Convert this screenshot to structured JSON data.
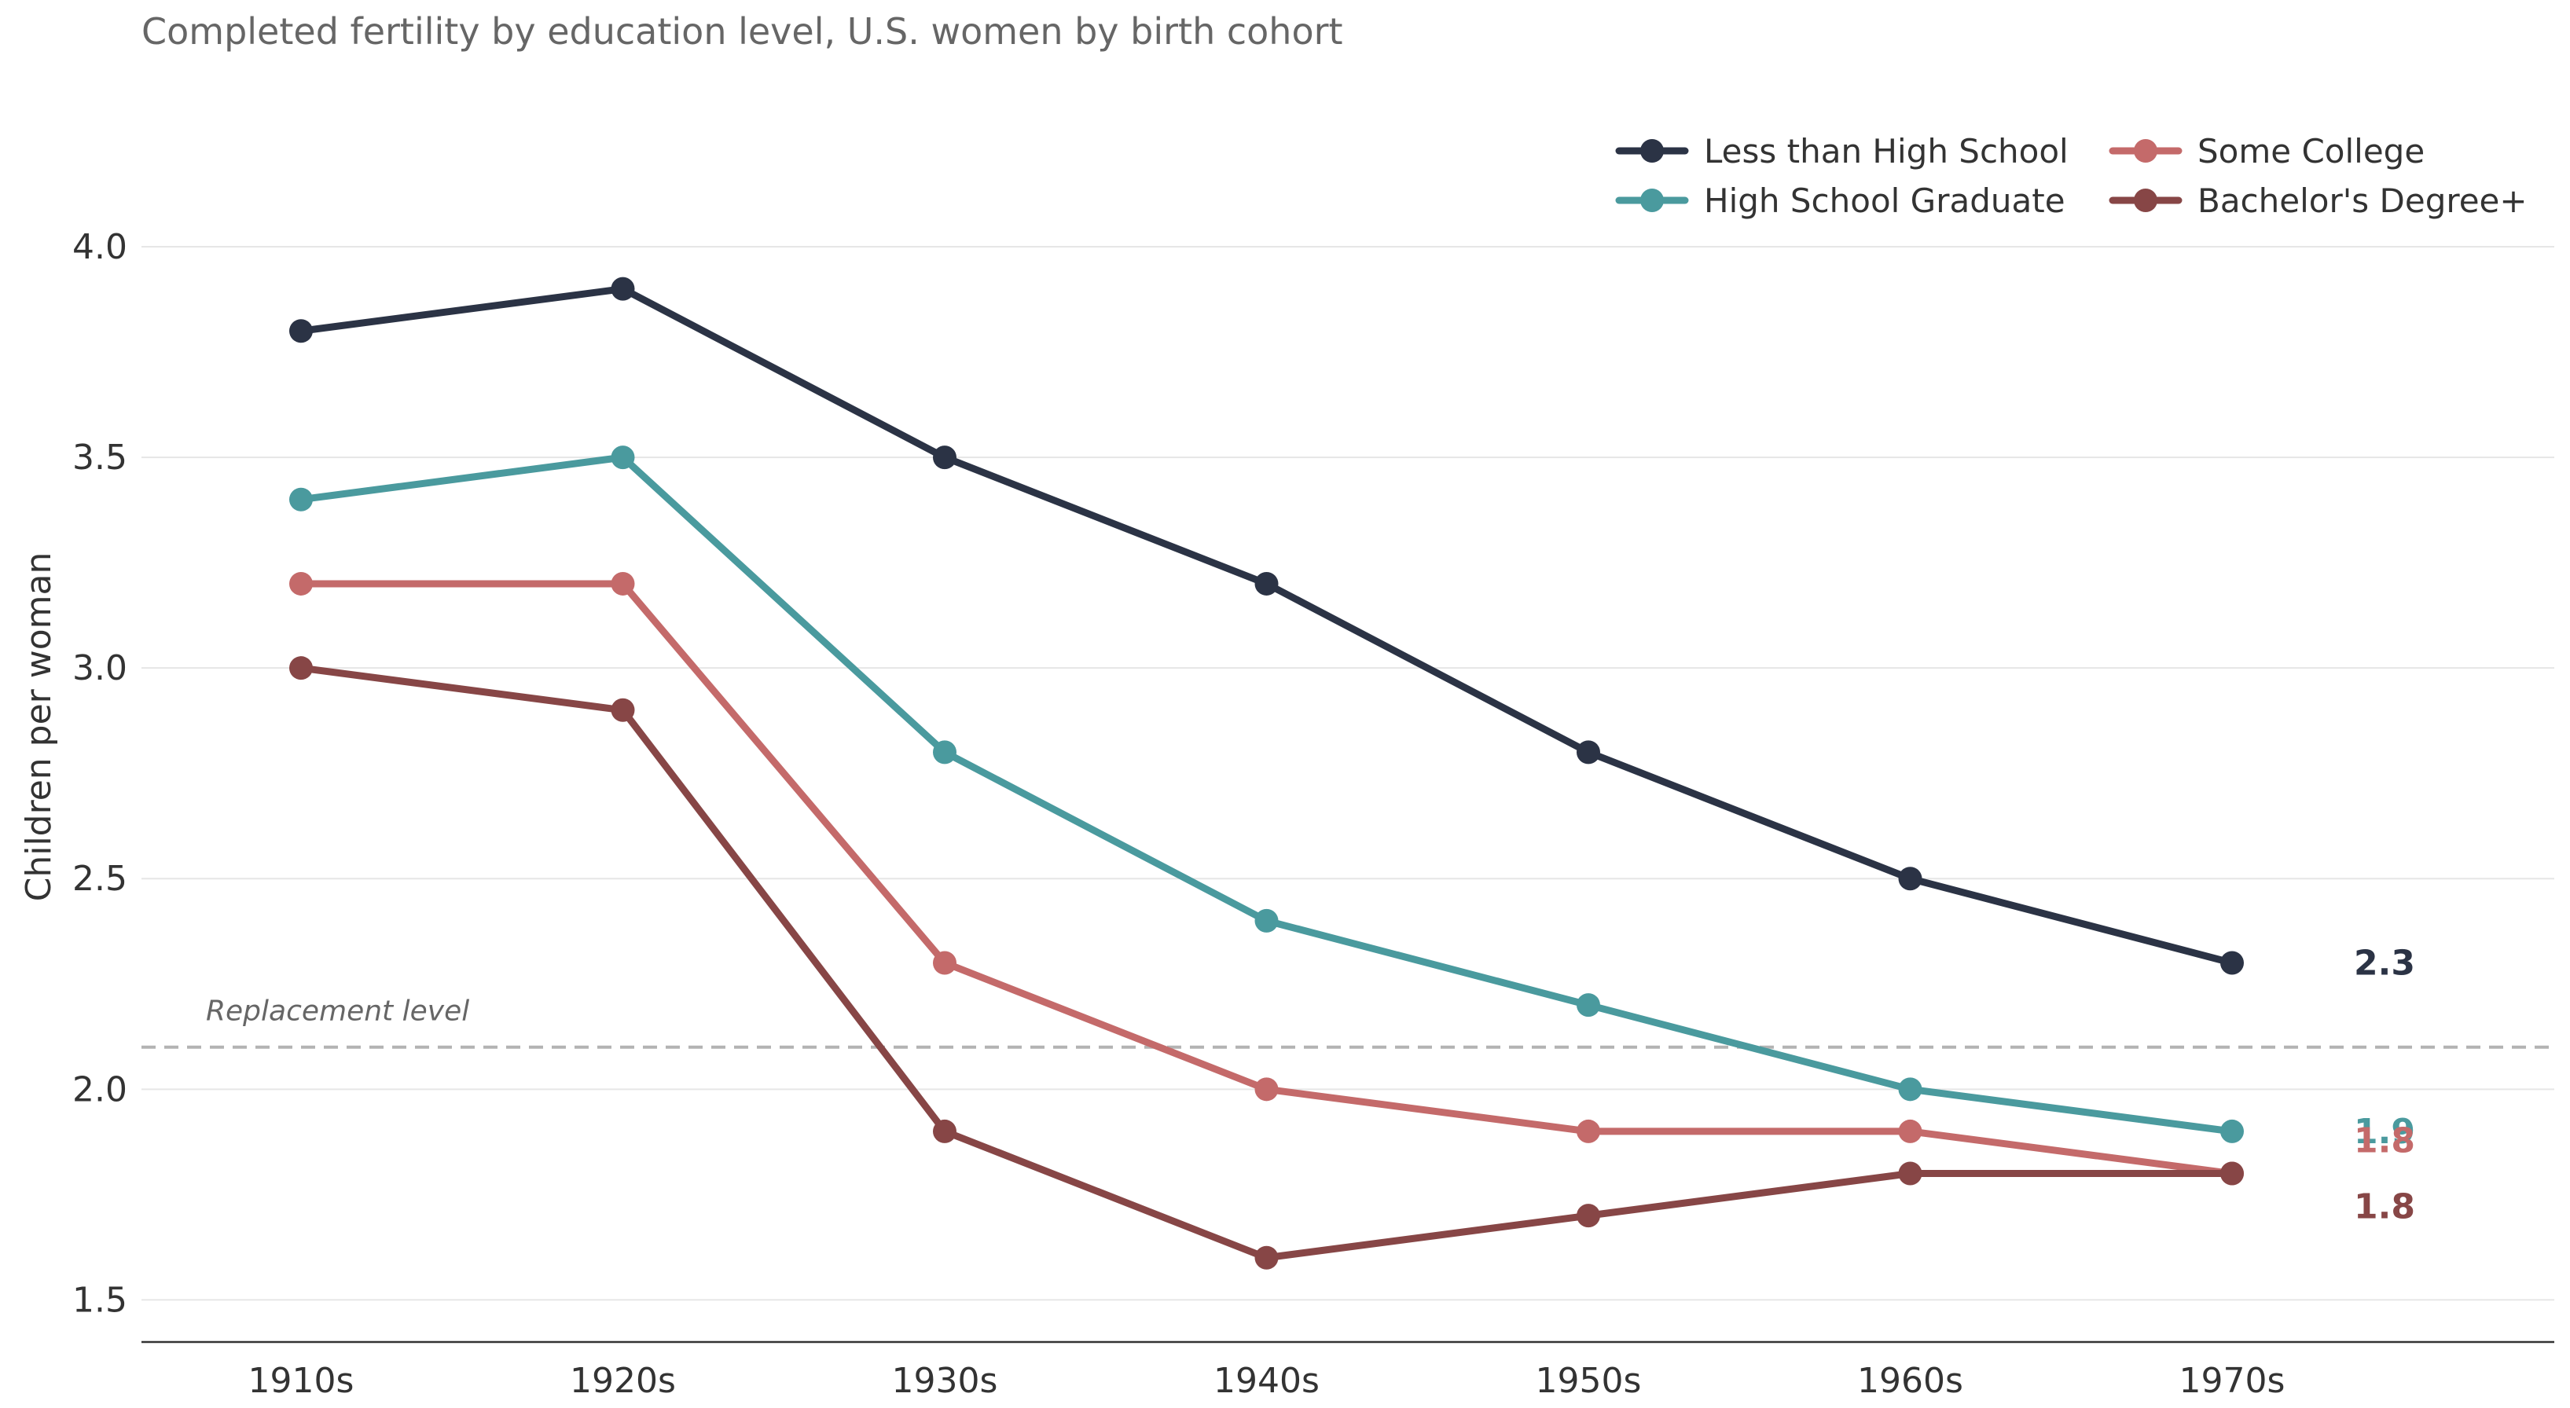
{
  "chart_data": {
    "type": "line",
    "title": "Completed fertility by education level, U.S. women by birth cohort",
    "xlabel": "",
    "ylabel": "Children per woman",
    "categories": [
      "1910s",
      "1920s",
      "1930s",
      "1940s",
      "1950s",
      "1960s",
      "1970s"
    ],
    "ylim": [
      1.4,
      4.25
    ],
    "yticks": [
      1.5,
      2.0,
      2.5,
      3.0,
      3.5,
      4.0
    ],
    "ytick_labels": [
      "1.5",
      "2.0",
      "2.5",
      "3.0",
      "3.5",
      "4.0"
    ],
    "grid": "horizontal",
    "legend_position": "top-right",
    "series": [
      {
        "name": "Less than High School",
        "color": "#2b3345",
        "values": [
          3.8,
          3.9,
          3.5,
          3.2,
          2.8,
          2.5,
          2.3
        ],
        "end_label": "2.3"
      },
      {
        "name": "High School Graduate",
        "color": "#4a9a9e",
        "values": [
          3.4,
          3.5,
          2.8,
          2.4,
          2.2,
          2.0,
          1.9
        ],
        "end_label": "1.9"
      },
      {
        "name": "Some College",
        "color": "#c46a6a",
        "values": [
          3.2,
          3.2,
          2.3,
          2.0,
          1.9,
          1.9,
          1.8
        ],
        "end_label": "1.8"
      },
      {
        "name": "Bachelor's Degree+",
        "color": "#874646",
        "values": [
          3.0,
          2.9,
          1.9,
          1.6,
          1.7,
          1.8,
          1.8
        ],
        "end_label": "1.8"
      }
    ],
    "reference_line": {
      "value": 2.1,
      "label": "Replacement level",
      "color": "#b3b3b3"
    }
  }
}
